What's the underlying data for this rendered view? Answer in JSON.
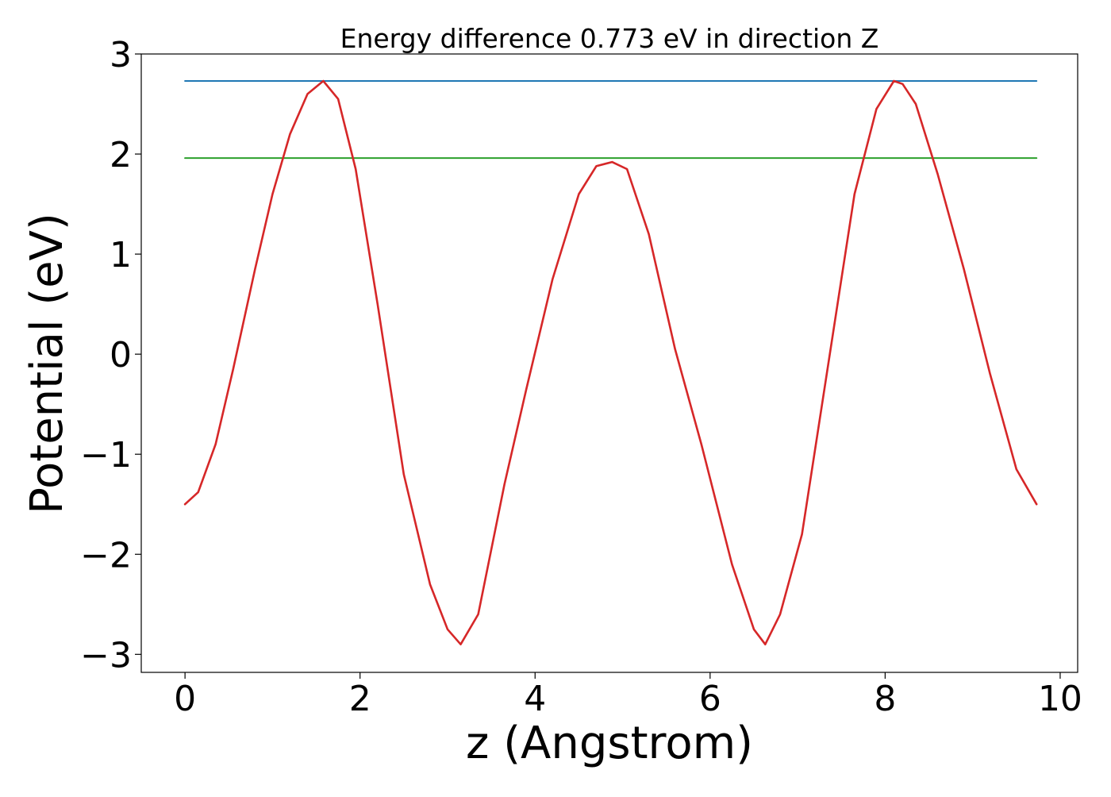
{
  "chart_data": {
    "type": "line",
    "title": "Energy difference 0.773 eV in direction Z",
    "xlabel": "z (Angstrom)",
    "ylabel": "Potential (eV)",
    "xlim": [
      -0.5,
      10.2
    ],
    "ylim": [
      -3.18,
      3.0
    ],
    "xticks": [
      0,
      2,
      4,
      6,
      8,
      10
    ],
    "xtick_labels": [
      "0",
      "2",
      "4",
      "6",
      "8",
      "10"
    ],
    "yticks": [
      -3,
      -2,
      -1,
      0,
      1,
      2,
      3
    ],
    "ytick_labels": [
      "−3",
      "−2",
      "−1",
      "0",
      "1",
      "2",
      "3"
    ],
    "grid": false,
    "legend": "none",
    "series": [
      {
        "color": "#1f77b4",
        "x": [
          0.0,
          9.73
        ],
        "y": [
          2.73,
          2.73
        ]
      },
      {
        "color": "#2ca02c",
        "x": [
          0.0,
          9.73
        ],
        "y": [
          1.96,
          1.96
        ]
      },
      {
        "color": "#d62728",
        "x": [
          0.0,
          0.15,
          0.35,
          0.55,
          0.8,
          1.0,
          1.2,
          1.4,
          1.58,
          1.75,
          1.95,
          2.2,
          2.5,
          2.8,
          3.0,
          3.15,
          3.35,
          3.65,
          3.9,
          4.2,
          4.5,
          4.7,
          4.88,
          5.05,
          5.3,
          5.6,
          5.9,
          6.25,
          6.5,
          6.63,
          6.8,
          7.05,
          7.35,
          7.65,
          7.9,
          8.1,
          8.2,
          8.35,
          8.6,
          8.9,
          9.2,
          9.5,
          9.73
        ],
        "y": [
          -1.5,
          -1.38,
          -0.9,
          -0.15,
          0.85,
          1.6,
          2.2,
          2.6,
          2.73,
          2.55,
          1.85,
          0.5,
          -1.2,
          -2.3,
          -2.75,
          -2.9,
          -2.6,
          -1.3,
          -0.35,
          0.75,
          1.6,
          1.88,
          1.92,
          1.85,
          1.2,
          0.05,
          -0.9,
          -2.1,
          -2.75,
          -2.9,
          -2.6,
          -1.8,
          -0.1,
          1.6,
          2.45,
          2.73,
          2.7,
          2.5,
          1.8,
          0.85,
          -0.2,
          -1.15,
          -1.5
        ]
      }
    ]
  }
}
